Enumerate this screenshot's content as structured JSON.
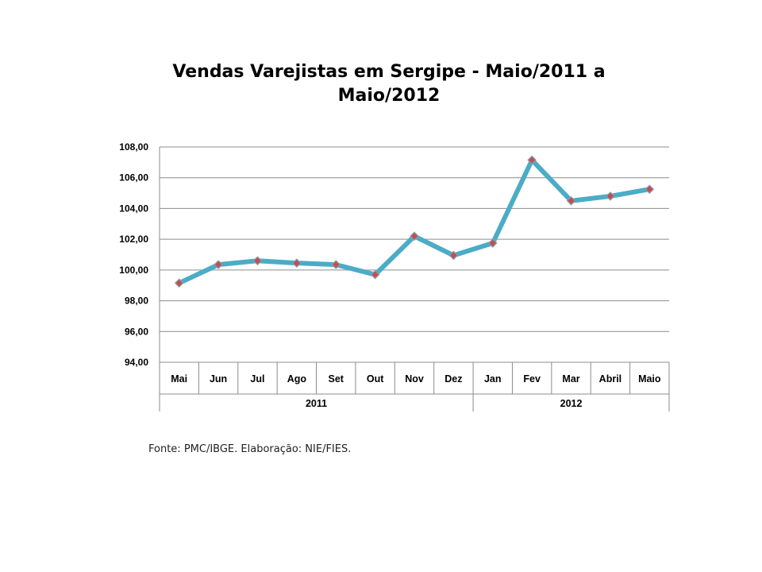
{
  "chart_data": {
    "type": "line",
    "title_line1": "Vendas Varejistas em Sergipe - Maio/2011 a",
    "title_line2": "Maio/2012",
    "categories": [
      "Mai",
      "Jun",
      "Jul",
      "Ago",
      "Set",
      "Out",
      "Nov",
      "Dez",
      "Jan",
      "Fev",
      "Mar",
      "Abril",
      "Maio"
    ],
    "groups": [
      {
        "label": "2011",
        "count": 8
      },
      {
        "label": "2012",
        "count": 5
      }
    ],
    "series": [
      {
        "values": [
          99.15,
          100.35,
          100.6,
          100.45,
          100.35,
          99.7,
          102.2,
          100.95,
          101.75,
          107.15,
          104.5,
          104.8,
          105.25
        ]
      }
    ],
    "ylim": [
      94,
      108
    ],
    "yticks": [
      "94,00",
      "96,00",
      "98,00",
      "100,00",
      "102,00",
      "104,00",
      "106,00",
      "108,00"
    ],
    "grid": true,
    "line_color": "#4bacc6",
    "marker_color": "#c0504d",
    "xlabel": "",
    "ylabel": ""
  },
  "source_note": "Fonte: PMC/IBGE. Elaboração:  NIE/FIES."
}
